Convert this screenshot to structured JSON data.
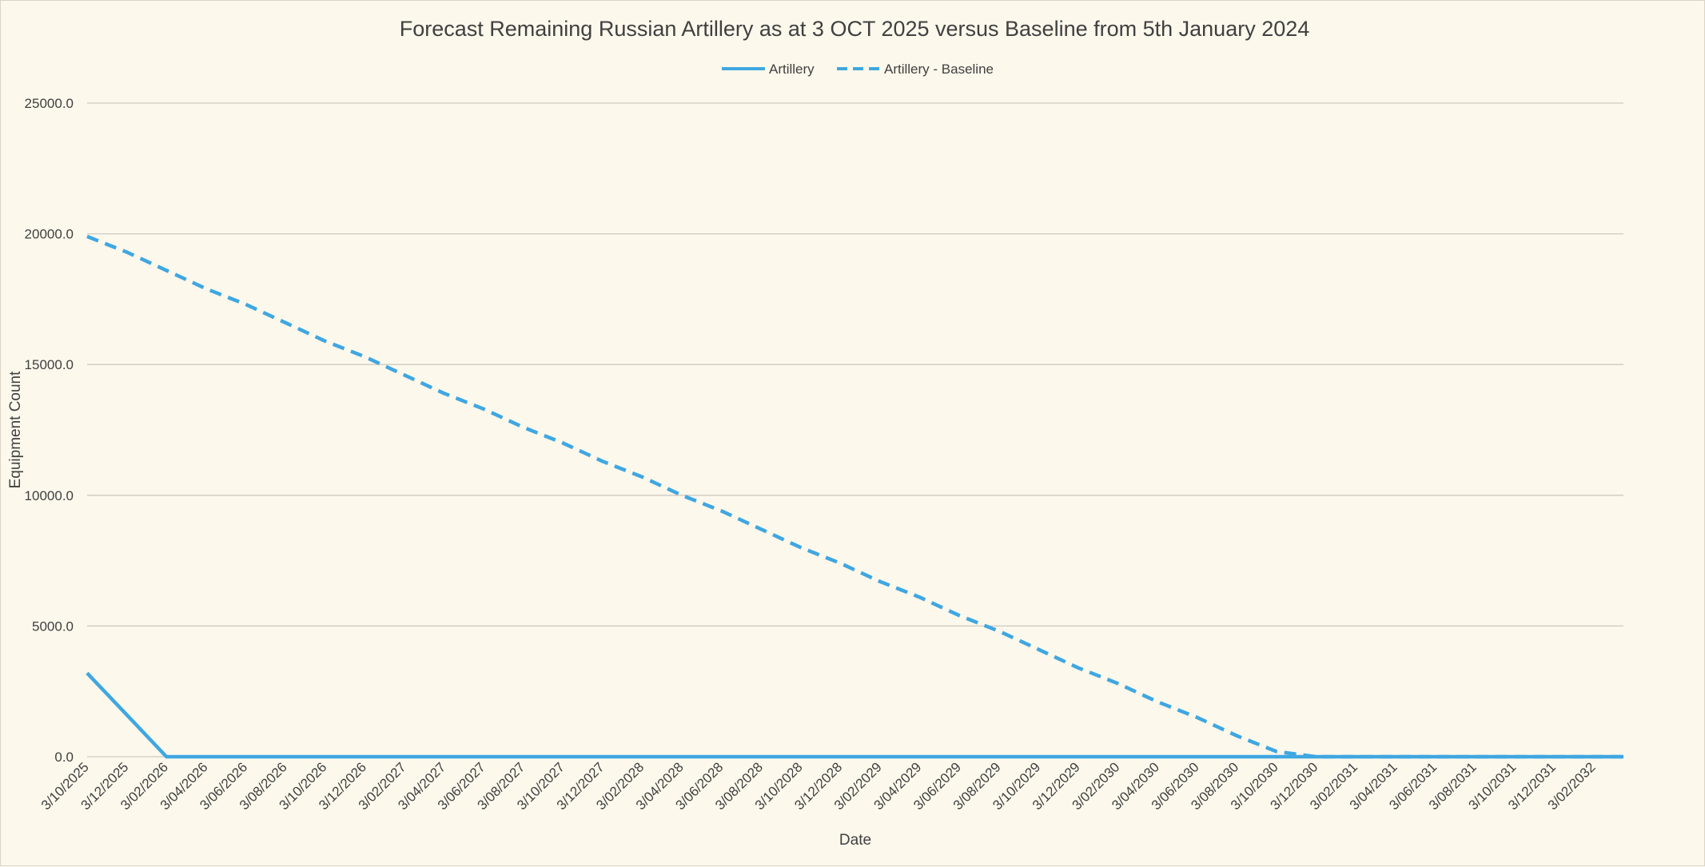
{
  "chart_data": {
    "type": "line",
    "title": "Forecast Remaining Russian Artillery as at 3 OCT 2025 versus Baseline from 5th January 2024",
    "xlabel": "Date",
    "ylabel": "Equipment Count",
    "ylim": [
      0,
      25000
    ],
    "yticks": [
      "0.0",
      "5000.0",
      "10000.0",
      "15000.0",
      "20000.0",
      "25000.0"
    ],
    "grid": true,
    "legend_position": "top-center",
    "categories": [
      "3/10/2025",
      "3/12/2025",
      "3/02/2026",
      "3/04/2026",
      "3/06/2026",
      "3/08/2026",
      "3/10/2026",
      "3/12/2026",
      "3/02/2027",
      "3/04/2027",
      "3/06/2027",
      "3/08/2027",
      "3/10/2027",
      "3/12/2027",
      "3/02/2028",
      "3/04/2028",
      "3/06/2028",
      "3/08/2028",
      "3/10/2028",
      "3/12/2028",
      "3/02/2029",
      "3/04/2029",
      "3/06/2029",
      "3/08/2029",
      "3/10/2029",
      "3/12/2029",
      "3/02/2030",
      "3/04/2030",
      "3/06/2030",
      "3/08/2030",
      "3/10/2030",
      "3/12/2030",
      "3/02/2031",
      "3/04/2031",
      "3/06/2031",
      "3/08/2031",
      "3/10/2031",
      "3/12/2031",
      "3/02/2032"
    ],
    "series": [
      {
        "name": "Artillery",
        "style": "solid",
        "color": "#3fa7e1",
        "values": [
          3200,
          1600,
          0,
          0,
          0,
          0,
          0,
          0,
          0,
          0,
          0,
          0,
          0,
          0,
          0,
          0,
          0,
          0,
          0,
          0,
          0,
          0,
          0,
          0,
          0,
          0,
          0,
          0,
          0,
          0,
          0,
          0,
          0,
          0,
          0,
          0,
          0,
          0,
          0
        ]
      },
      {
        "name": "Artillery - Baseline",
        "style": "dashed",
        "color": "#3fa7e1",
        "values": [
          19900,
          19300,
          18600,
          17900,
          17300,
          16600,
          15900,
          15300,
          14600,
          13900,
          13300,
          12600,
          12000,
          11300,
          10700,
          10000,
          9400,
          8700,
          8000,
          7400,
          6700,
          6100,
          5400,
          4800,
          4100,
          3400,
          2800,
          2100,
          1500,
          800,
          200,
          0,
          0,
          0,
          0,
          0,
          0,
          0,
          0
        ]
      }
    ]
  }
}
